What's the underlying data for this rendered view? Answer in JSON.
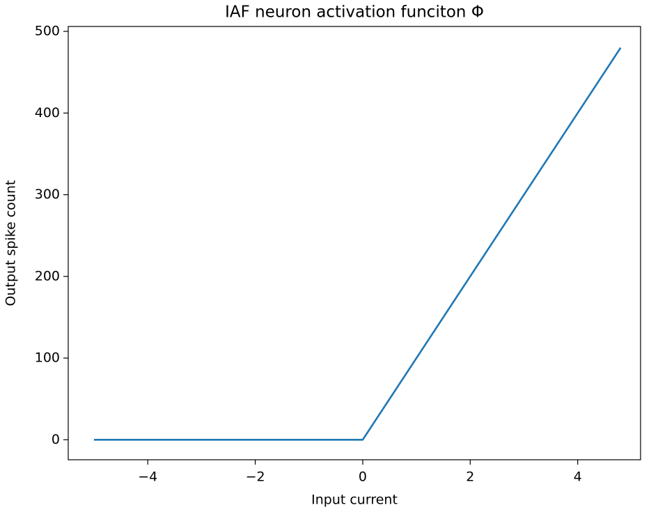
{
  "chart_data": {
    "type": "line",
    "title": "IAF neuron activation funciton Φ",
    "x_label": "Input current",
    "y_label": "Output spike count",
    "x": [
      -5,
      0,
      4.8
    ],
    "values": [
      0,
      0,
      480
    ],
    "color": "#1f77b4",
    "xlim": [
      -5.48,
      5.17
    ],
    "ylim": [
      -24.5,
      506
    ],
    "xticks": [
      {
        "value": -4,
        "label": "−4"
      },
      {
        "value": -2,
        "label": "−2"
      },
      0,
      2,
      4
    ],
    "yticks": [
      0,
      100,
      200,
      300,
      400,
      500
    ]
  }
}
